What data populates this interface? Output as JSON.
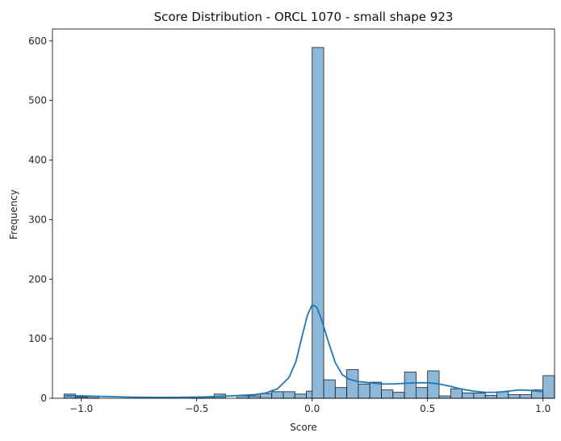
{
  "chart_data": {
    "type": "bar",
    "subtype": "histogram-with-kde",
    "title": "Score Distribution - ORCL 1070 - small shape 923",
    "xlabel": "Score",
    "ylabel": "Frequency",
    "xlim": [
      -1.125,
      1.05
    ],
    "ylim": [
      0,
      620
    ],
    "xticks": [
      -1.0,
      -0.5,
      0.0,
      0.5,
      1.0
    ],
    "xtick_labels": [
      "−1.0",
      "−0.5",
      "0.0",
      "0.5",
      "1.0"
    ],
    "yticks": [
      0,
      100,
      200,
      300,
      400,
      500,
      600
    ],
    "ytick_labels": [
      "0",
      "100",
      "200",
      "300",
      "400",
      "500",
      "600"
    ],
    "grid": false,
    "colors": {
      "bar_fill": "#8db8d9",
      "bar_edge": "#1a1a1a",
      "kde_line": "#1f77b4"
    },
    "bin_start": -1.075,
    "bin_width": 0.05,
    "bins": [
      {
        "x": -1.05,
        "count": 7
      },
      {
        "x": -1.0,
        "count": 2
      },
      {
        "x": -0.95,
        "count": 3
      },
      {
        "x": -0.9,
        "count": 0
      },
      {
        "x": -0.85,
        "count": 0
      },
      {
        "x": -0.8,
        "count": 0
      },
      {
        "x": -0.75,
        "count": 0
      },
      {
        "x": -0.7,
        "count": 0
      },
      {
        "x": -0.65,
        "count": 0
      },
      {
        "x": -0.6,
        "count": 0
      },
      {
        "x": -0.55,
        "count": 0
      },
      {
        "x": -0.5,
        "count": 2
      },
      {
        "x": -0.45,
        "count": 2
      },
      {
        "x": -0.4,
        "count": 7
      },
      {
        "x": -0.35,
        "count": 0
      },
      {
        "x": -0.3,
        "count": 4
      },
      {
        "x": -0.25,
        "count": 4
      },
      {
        "x": -0.2,
        "count": 8
      },
      {
        "x": -0.15,
        "count": 11
      },
      {
        "x": -0.1,
        "count": 11
      },
      {
        "x": -0.05,
        "count": 7
      },
      {
        "x": 0.0,
        "count": 12
      },
      {
        "x": 0.025,
        "count": 589
      },
      {
        "x": 0.075,
        "count": 31
      },
      {
        "x": 0.125,
        "count": 18
      },
      {
        "x": 0.175,
        "count": 48
      },
      {
        "x": 0.225,
        "count": 24
      },
      {
        "x": 0.275,
        "count": 27
      },
      {
        "x": 0.325,
        "count": 14
      },
      {
        "x": 0.375,
        "count": 10
      },
      {
        "x": 0.425,
        "count": 44
      },
      {
        "x": 0.475,
        "count": 18
      },
      {
        "x": 0.525,
        "count": 46
      },
      {
        "x": 0.575,
        "count": 4
      },
      {
        "x": 0.625,
        "count": 16
      },
      {
        "x": 0.675,
        "count": 9
      },
      {
        "x": 0.725,
        "count": 9
      },
      {
        "x": 0.775,
        "count": 5
      },
      {
        "x": 0.825,
        "count": 11
      },
      {
        "x": 0.875,
        "count": 6
      },
      {
        "x": 0.925,
        "count": 6
      },
      {
        "x": 0.975,
        "count": 14
      },
      {
        "x": 1.025,
        "count": 38
      }
    ],
    "kde": {
      "x": [
        -1.07,
        -1.0,
        -0.9,
        -0.8,
        -0.7,
        -0.6,
        -0.5,
        -0.4,
        -0.3,
        -0.25,
        -0.2,
        -0.15,
        -0.1,
        -0.07,
        -0.04,
        -0.02,
        0.0,
        0.02,
        0.04,
        0.07,
        0.1,
        0.13,
        0.16,
        0.2,
        0.25,
        0.3,
        0.35,
        0.4,
        0.45,
        0.5,
        0.55,
        0.6,
        0.65,
        0.7,
        0.75,
        0.8,
        0.85,
        0.9,
        0.95,
        1.0
      ],
      "y": [
        4,
        4,
        3,
        2,
        1.5,
        1.5,
        2,
        3,
        5,
        6,
        9,
        16,
        35,
        62,
        110,
        140,
        157,
        153,
        133,
        95,
        60,
        40,
        32,
        28,
        26,
        24,
        24,
        25,
        26,
        26,
        24,
        20,
        15,
        12,
        10,
        10,
        12,
        14,
        13,
        11
      ]
    }
  }
}
